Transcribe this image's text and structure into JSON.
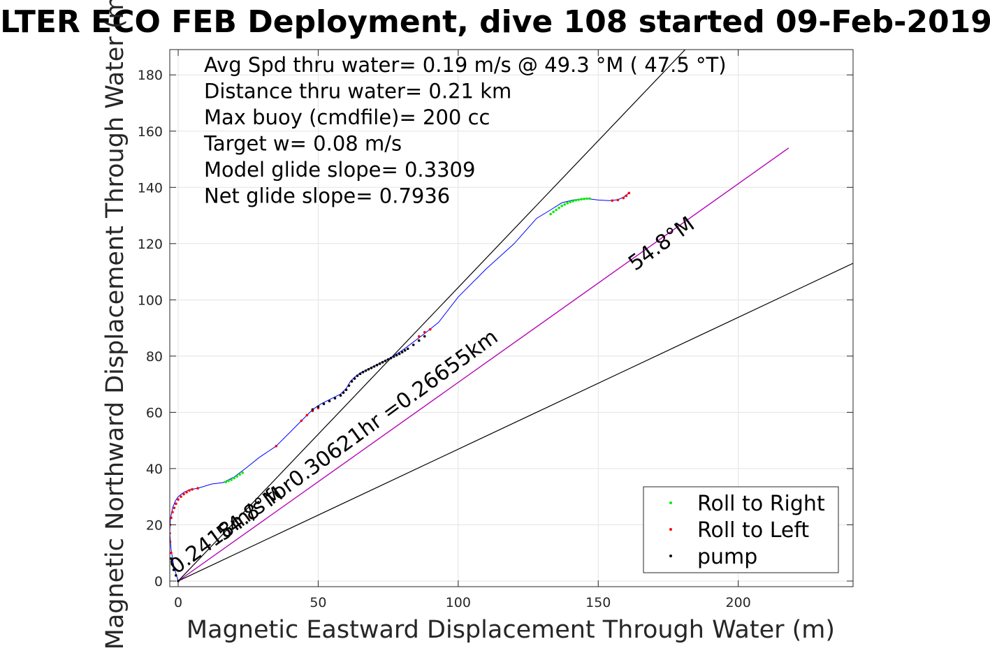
{
  "chart_data": {
    "type": "scatter",
    "title": "LTER ECO FEB Deployment, dive 108 started 09-Feb-2019",
    "xlabel": "Magnetic Eastward Displacement Through Water (m)",
    "ylabel": "Magnetic Northward Displacement Through Water (m)",
    "xlim": [
      -3,
      241
    ],
    "ylim": [
      -2,
      189
    ],
    "xticks": [
      0,
      50,
      100,
      150,
      200
    ],
    "yticks": [
      0,
      20,
      40,
      60,
      80,
      100,
      120,
      140,
      160,
      180
    ],
    "grid": true,
    "legend_position": "bottom-right",
    "annotations": [
      "Avg Spd thru water=  0.19 m/s @  49.3 °M ( 47.5 °T)",
      "Distance thru water=  0.21 km",
      "Max buoy (cmdfile)= 200 cc",
      "Target w= 0.08 m/s",
      "Model glide slope= 0.3309",
      "Net glide slope= 0.7936"
    ],
    "line_labels": [
      {
        "text": "0.2418m/s for0.30621hr =0.26655km",
        "x": 57,
        "y": 44,
        "angle_deg": 36
      },
      {
        "text": "54.8°M",
        "x": 174,
        "y": 118,
        "angle_deg": 36
      },
      {
        "text": "54.8°M",
        "x": 27,
        "y": 22,
        "angle_deg": 36
      }
    ],
    "reference_lines": [
      {
        "name": "steep",
        "x": [
          0,
          182
        ],
        "y": [
          0,
          190
        ],
        "color": "#000000"
      },
      {
        "name": "heading",
        "x": [
          0,
          218
        ],
        "y": [
          0,
          154
        ],
        "color": "#000000"
      },
      {
        "name": "heading-magenta",
        "x": [
          0,
          218
        ],
        "y": [
          0,
          154
        ],
        "color": "#cc00cc"
      },
      {
        "name": "shallow",
        "x": [
          0,
          241
        ],
        "y": [
          0,
          113
        ],
        "color": "#000000"
      }
    ],
    "series": [
      {
        "name": "track",
        "color": "#0000ff",
        "x": [
          0,
          -1.5,
          -2.5,
          -3,
          -2.8,
          -2,
          -1,
          0,
          2,
          4,
          7,
          12,
          16,
          20,
          24,
          29,
          35,
          40,
          44,
          48,
          51,
          55,
          58,
          60,
          61.5,
          63,
          65,
          68,
          72,
          76,
          80,
          84,
          88,
          93,
          100,
          110,
          120,
          128,
          133,
          137,
          141,
          146,
          150,
          154,
          157,
          159,
          161
        ],
        "y": [
          0,
          5,
          11,
          17,
          22,
          26,
          28.5,
          30,
          31.5,
          32.5,
          33,
          34.5,
          35,
          37,
          40,
          44,
          48,
          53,
          57,
          61,
          63,
          65,
          66.5,
          68.5,
          71,
          72.5,
          74,
          75.5,
          77.5,
          79.5,
          82,
          85,
          88,
          92,
          101,
          111,
          120,
          129,
          132,
          134.5,
          135.5,
          136,
          135.5,
          135.3,
          135.6,
          136.5,
          138
        ]
      },
      {
        "name": "Roll to Right",
        "color": "#00ee00",
        "x": [
          17,
          18,
          19,
          20,
          21,
          22,
          23,
          133,
          134,
          135,
          136,
          137,
          138,
          139,
          140,
          141,
          142,
          143,
          144,
          145,
          146,
          147
        ],
        "y": [
          35.2,
          35.6,
          36.0,
          36.6,
          37.2,
          37.9,
          38.5,
          130.5,
          131.3,
          132.0,
          132.7,
          133.4,
          133.9,
          134.4,
          134.8,
          135.1,
          135.4,
          135.6,
          135.8,
          135.9,
          136.0,
          136.0
        ]
      },
      {
        "name": "Roll to Left",
        "color": "#ff0000",
        "x": [
          -2.5,
          -2.9,
          -3,
          -2.9,
          -2.5,
          -2,
          -1.4,
          -0.8,
          0,
          1,
          2,
          3,
          4,
          5,
          7,
          35,
          44,
          46,
          48,
          50,
          86,
          88,
          90,
          155,
          157,
          159,
          160,
          161
        ],
        "y": [
          10,
          14,
          17,
          20,
          22.5,
          24.5,
          26,
          27.5,
          29,
          30,
          30.9,
          31.6,
          32.2,
          32.6,
          33,
          48,
          57,
          59,
          60.5,
          61.5,
          87,
          88.5,
          89.5,
          135.3,
          135.5,
          136.2,
          137,
          138
        ]
      },
      {
        "name": "pump",
        "color": "#000000",
        "x": [
          0,
          -0.8,
          -1.6,
          -2.2,
          -2.6,
          48,
          50,
          52,
          54,
          56,
          58,
          59,
          60,
          61,
          62,
          63,
          64,
          65,
          66,
          67,
          68,
          69,
          70,
          71,
          72,
          73,
          74,
          75,
          76,
          77,
          78,
          79,
          80,
          81,
          82,
          84,
          86,
          88
        ],
        "y": [
          0,
          2,
          4,
          6,
          8,
          61,
          62,
          63,
          64,
          65,
          66,
          67,
          68,
          69.5,
          71,
          72,
          73,
          73.7,
          74.3,
          74.8,
          75.3,
          75.8,
          76.3,
          76.8,
          77.3,
          77.8,
          78.3,
          78.8,
          79.3,
          79.8,
          80.3,
          80.8,
          81.4,
          82,
          82.6,
          84,
          85.5,
          87
        ]
      }
    ],
    "legend": [
      {
        "label": "Roll to Right",
        "color": "#00ee00"
      },
      {
        "label": "Roll to Left",
        "color": "#ff0000"
      },
      {
        "label": "pump",
        "color": "#000000"
      }
    ]
  }
}
